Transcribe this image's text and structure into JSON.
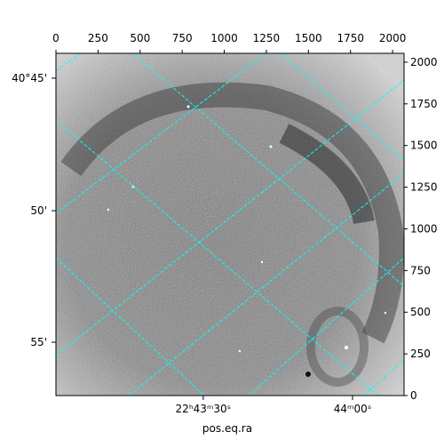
{
  "chart_data": {
    "type": "image",
    "xlabel": "pos.eq.ra",
    "xlim": [
      0,
      2068
    ],
    "ylim": [
      0,
      2053
    ],
    "xticks": [
      0,
      250,
      500,
      750,
      1000,
      1250,
      1500,
      1750,
      2000
    ],
    "yticks": [
      0,
      250,
      500,
      750,
      1000,
      1250,
      1500,
      1750,
      2000
    ],
    "ra_ticks": [
      {
        "value": 875,
        "label": "22ʰ43ᵐ30ˢ"
      },
      {
        "value": 1762,
        "label": "44ᵐ00ˢ"
      }
    ],
    "dec_ticks": [
      {
        "value": 1904,
        "label": "40°45'"
      },
      {
        "value": 1109,
        "label": "50'"
      },
      {
        "value": 320,
        "label": "55'"
      }
    ],
    "grid_color": "#00ffff"
  }
}
